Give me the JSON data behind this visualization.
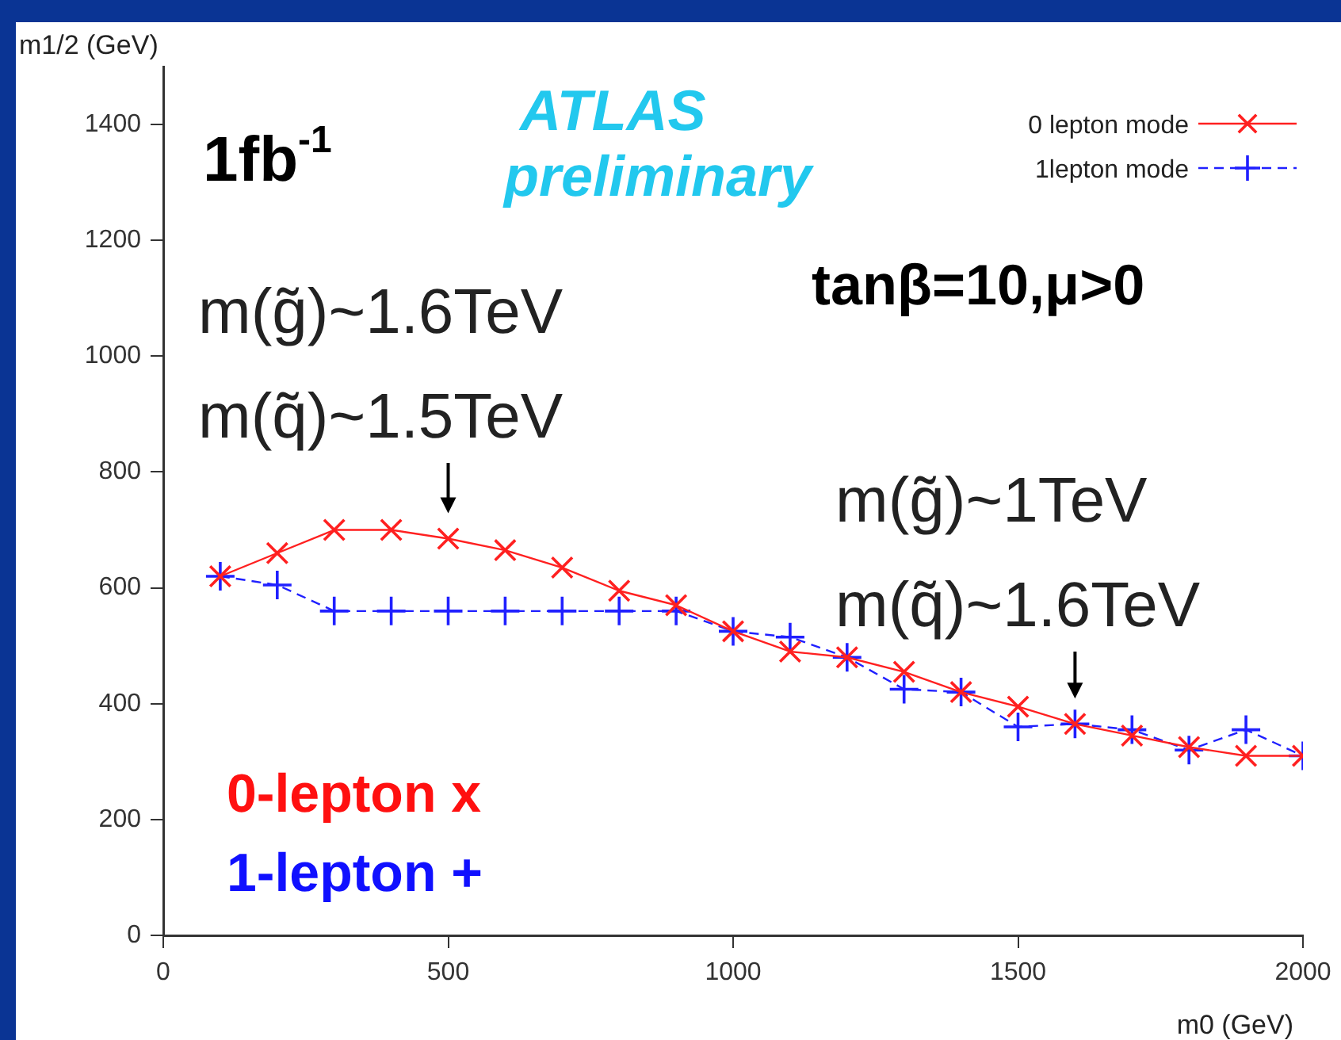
{
  "chart_data": {
    "type": "line",
    "xlabel": "m0 (GeV)",
    "ylabel": "m1/2 (GeV)",
    "x": [
      100,
      200,
      300,
      400,
      500,
      600,
      700,
      800,
      900,
      1000,
      1100,
      1200,
      1300,
      1400,
      1500,
      1600,
      1700,
      1800,
      1900,
      2000
    ],
    "series": [
      {
        "name": "0 lepton mode",
        "color": "#ff2020",
        "marker": "cross",
        "line_style": "solid",
        "values": [
          620,
          660,
          700,
          700,
          685,
          665,
          635,
          595,
          570,
          525,
          490,
          480,
          455,
          420,
          395,
          365,
          345,
          325,
          310,
          310
        ]
      },
      {
        "name": "1lepton mode",
        "color": "#2020ff",
        "marker": "plus",
        "line_style": "dashed",
        "values": [
          620,
          605,
          560,
          560,
          560,
          560,
          560,
          560,
          560,
          525,
          515,
          480,
          425,
          420,
          360,
          365,
          355,
          320,
          355,
          310
        ]
      }
    ],
    "xlim": [
      0,
      2000
    ],
    "xticks": [
      0,
      500,
      1000,
      1500,
      2000
    ],
    "ylim": [
      0,
      1500
    ],
    "yticks": [
      0,
      200,
      400,
      600,
      800,
      1000,
      1200,
      1400
    ],
    "grid": false,
    "legend": "top right",
    "annotations": [
      "1fb$^{-1}$",
      "ATLAS preliminary",
      "tanβ=10,μ>0",
      "m(g̃)~1.6TeV",
      {
        "text": "m(q̃)~1.5TeV",
        "x": 500,
        "y": 685
      },
      "m(g̃)~1TeV",
      {
        "text": "m(q̃)~1.6TeV",
        "x": 1600,
        "y": 365
      },
      "0-lepton x",
      "1-lepton +"
    ]
  }
}
